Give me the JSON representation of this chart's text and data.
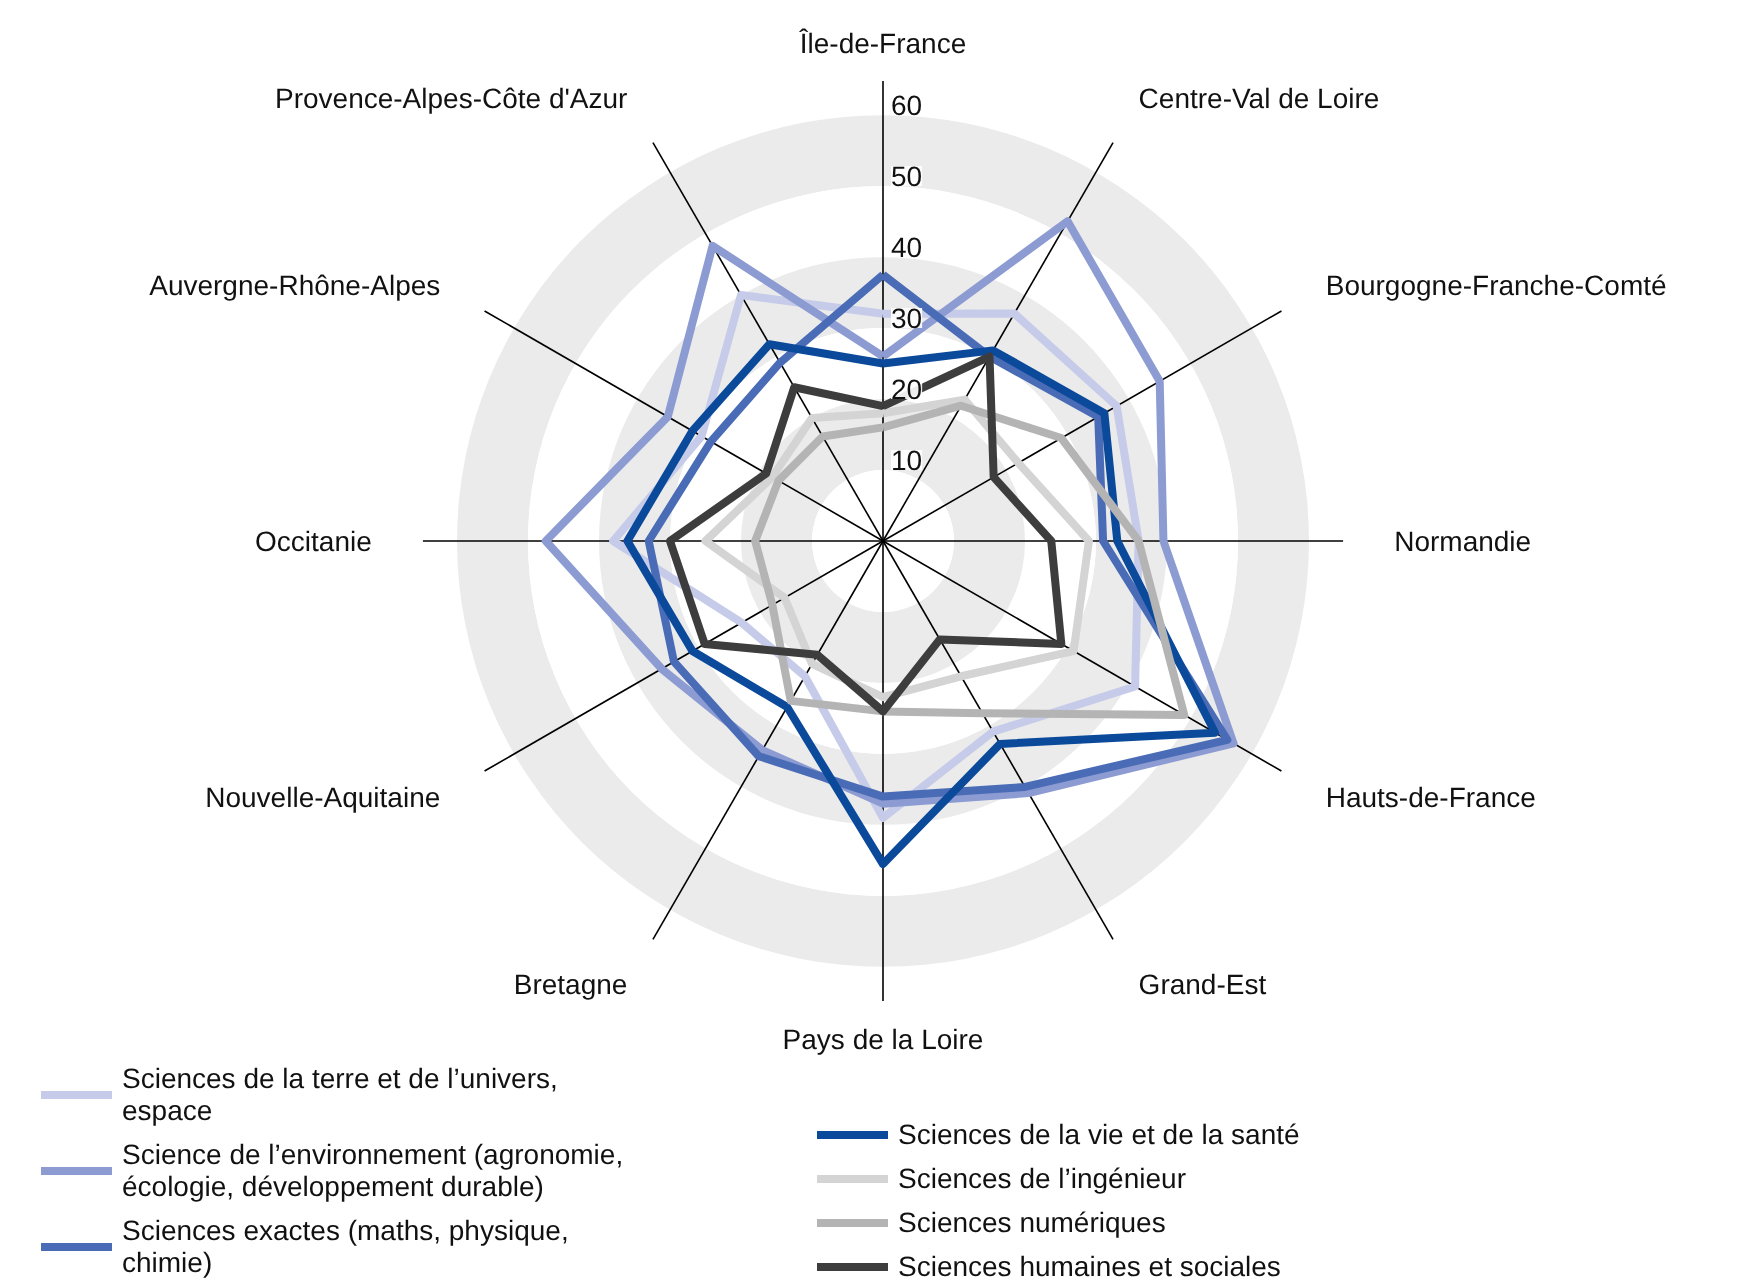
{
  "chart_data": {
    "type": "radar",
    "categories": [
      "Île-de-France",
      "Centre-Val de Loire",
      "Bourgogne-Franche-Comté",
      "Normandie",
      "Hauts-de-France",
      "Grand-Est",
      "Pays de la Loire",
      "Bretagne",
      "Nouvelle-Aquitaine",
      "Occitanie",
      "Auvergne-Rhône-Alpes",
      "Provence-Alpes-Côte d'Azur"
    ],
    "ylim": [
      0,
      60
    ],
    "yticks": [
      10,
      20,
      30,
      40,
      50,
      60
    ],
    "legend": "bottom",
    "grid": true,
    "series": [
      {
        "name": "Sciences de la terre et de l’univers, espace",
        "color": "#c5cbe8",
        "values": [
          32,
          37,
          38,
          36,
          41,
          31,
          39,
          22,
          23,
          38,
          29.5,
          40
        ]
      },
      {
        "name": "Science de l’environnement (agronomie, écologie, développement durable)",
        "color": "#8c9bd2",
        "values": [
          26,
          52,
          45,
          39.5,
          57,
          41,
          37,
          34,
          36,
          47.5,
          35,
          48
        ]
      },
      {
        "name": "Sciences exactes (maths, physique, chimie)",
        "color": "#4a6cb6",
        "values": [
          37.5,
          30,
          35,
          31,
          56,
          40,
          36,
          35,
          34,
          33,
          28,
          29
        ]
      },
      {
        "name": "Sciences de la vie et de la santé",
        "color": "#0b4a9b",
        "values": [
          25,
          31,
          36,
          33,
          54,
          33,
          45.5,
          27,
          31,
          36,
          31,
          32
        ]
      },
      {
        "name": "Sciences de l’ingénieur",
        "color": "#d4d4d4",
        "values": [
          18,
          23,
          22,
          29,
          31,
          22,
          22,
          20,
          16,
          25,
          18,
          20
        ]
      },
      {
        "name": "Sciences numériques",
        "color": "#b4b4b4",
        "values": [
          16,
          22,
          29,
          36,
          49,
          28,
          24,
          26,
          18,
          18,
          17,
          17
        ]
      },
      {
        "name": "Sciences humaines et sociales",
        "color": "#3d3d3d",
        "values": [
          19,
          30,
          18,
          23.7,
          29,
          16,
          24,
          18.5,
          29,
          30,
          19,
          25
        ]
      }
    ]
  }
}
